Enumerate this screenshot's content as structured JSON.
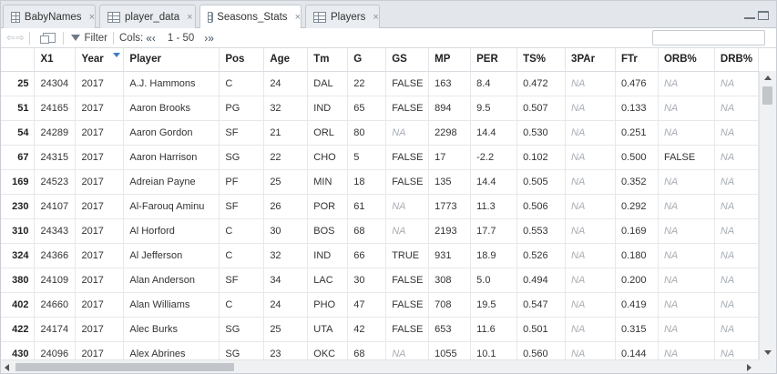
{
  "tabs": [
    {
      "label": "BabyNames",
      "active": false
    },
    {
      "label": "player_data",
      "active": false
    },
    {
      "label": "Seasons_Stats",
      "active": true
    },
    {
      "label": "Players",
      "active": false
    }
  ],
  "tab_close_glyph": "×",
  "toolbar": {
    "filter_label": "Filter",
    "cols_label": "Cols:",
    "cols_prev": "«‹",
    "cols_range": "1 - 50",
    "cols_next": "›»",
    "search_placeholder": ""
  },
  "columns": [
    "",
    "X1",
    "Year",
    "Player",
    "Pos",
    "Age",
    "Tm",
    "G",
    "GS",
    "MP",
    "PER",
    "TS%",
    "3PAr",
    "FTr",
    "ORB%",
    "DRB%"
  ],
  "sorted_column": "Year",
  "rows": [
    [
      "25",
      "24304",
      "2017",
      "A.J. Hammons",
      "C",
      "24",
      "DAL",
      "22",
      "FALSE",
      "163",
      "8.4",
      "0.472",
      "NA",
      "0.476",
      "NA",
      "NA"
    ],
    [
      "51",
      "24165",
      "2017",
      "Aaron Brooks",
      "PG",
      "32",
      "IND",
      "65",
      "FALSE",
      "894",
      "9.5",
      "0.507",
      "NA",
      "0.133",
      "NA",
      "NA"
    ],
    [
      "54",
      "24289",
      "2017",
      "Aaron Gordon",
      "SF",
      "21",
      "ORL",
      "80",
      "NA",
      "2298",
      "14.4",
      "0.530",
      "NA",
      "0.251",
      "NA",
      "NA"
    ],
    [
      "67",
      "24315",
      "2017",
      "Aaron Harrison",
      "SG",
      "22",
      "CHO",
      "5",
      "FALSE",
      "17",
      "-2.2",
      "0.102",
      "NA",
      "0.500",
      "FALSE",
      "NA"
    ],
    [
      "169",
      "24523",
      "2017",
      "Adreian Payne",
      "PF",
      "25",
      "MIN",
      "18",
      "FALSE",
      "135",
      "14.4",
      "0.505",
      "NA",
      "0.352",
      "NA",
      "NA"
    ],
    [
      "230",
      "24107",
      "2017",
      "Al-Farouq Aminu",
      "SF",
      "26",
      "POR",
      "61",
      "NA",
      "1773",
      "11.3",
      "0.506",
      "NA",
      "0.292",
      "NA",
      "NA"
    ],
    [
      "310",
      "24343",
      "2017",
      "Al Horford",
      "C",
      "30",
      "BOS",
      "68",
      "NA",
      "2193",
      "17.7",
      "0.553",
      "NA",
      "0.169",
      "NA",
      "NA"
    ],
    [
      "324",
      "24366",
      "2017",
      "Al Jefferson",
      "C",
      "32",
      "IND",
      "66",
      "TRUE",
      "931",
      "18.9",
      "0.526",
      "NA",
      "0.180",
      "NA",
      "NA"
    ],
    [
      "380",
      "24109",
      "2017",
      "Alan Anderson",
      "SF",
      "34",
      "LAC",
      "30",
      "FALSE",
      "308",
      "5.0",
      "0.494",
      "NA",
      "0.200",
      "NA",
      "NA"
    ],
    [
      "402",
      "24660",
      "2017",
      "Alan Williams",
      "C",
      "24",
      "PHO",
      "47",
      "FALSE",
      "708",
      "19.5",
      "0.547",
      "NA",
      "0.419",
      "NA",
      "NA"
    ],
    [
      "422",
      "24174",
      "2017",
      "Alec Burks",
      "SG",
      "25",
      "UTA",
      "42",
      "FALSE",
      "653",
      "11.6",
      "0.501",
      "NA",
      "0.315",
      "NA",
      "NA"
    ],
    [
      "430",
      "24096",
      "2017",
      "Alex Abrines",
      "SG",
      "23",
      "OKC",
      "68",
      "NA",
      "1055",
      "10.1",
      "0.560",
      "NA",
      "0.144",
      "NA",
      "NA"
    ]
  ],
  "colors": {
    "na_text": "#a7adb4",
    "sort_indicator": "#3d7bc6",
    "tab_strip": "#e3e7ec"
  }
}
